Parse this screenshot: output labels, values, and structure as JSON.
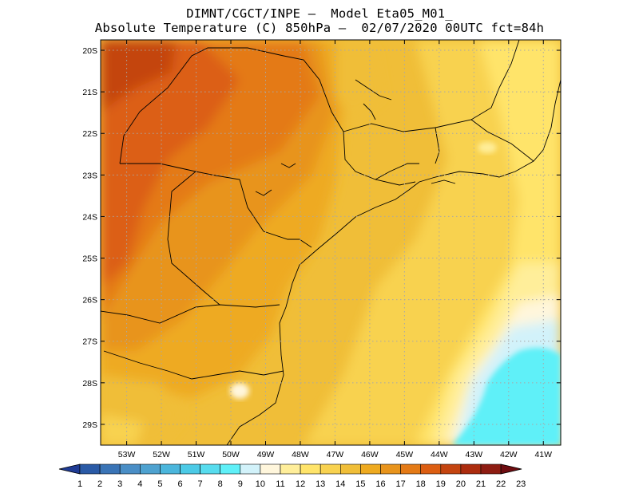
{
  "title": {
    "line1": "DIMNT/CGCT/INPE –  Model Eta05_M01_",
    "line2": "Absolute Temperature (C) 850hPa –  02/07/2020 00UTC fct=84h"
  },
  "map_data": {
    "variable": "Absolute Temperature",
    "units": "C",
    "level": "850hPa",
    "model": "Eta05_M01_",
    "run": "02/07/2020 00UTC",
    "forecast": "fct=84h",
    "lon_range": [
      -53.75,
      -40.5
    ],
    "lat_range": [
      -29.5,
      -19.75
    ],
    "x_ticks": [
      {
        "value": -53,
        "label": "53W"
      },
      {
        "value": -52,
        "label": "52W"
      },
      {
        "value": -51,
        "label": "51W"
      },
      {
        "value": -50,
        "label": "50W"
      },
      {
        "value": -49,
        "label": "49W"
      },
      {
        "value": -48,
        "label": "48W"
      },
      {
        "value": -47,
        "label": "47W"
      },
      {
        "value": -46,
        "label": "46W"
      },
      {
        "value": -45,
        "label": "45W"
      },
      {
        "value": -44,
        "label": "44W"
      },
      {
        "value": -43,
        "label": "43W"
      },
      {
        "value": -42,
        "label": "42W"
      },
      {
        "value": -41,
        "label": "41W"
      }
    ],
    "y_ticks": [
      {
        "value": -20,
        "label": "20S"
      },
      {
        "value": -21,
        "label": "21S"
      },
      {
        "value": -22,
        "label": "22S"
      },
      {
        "value": -23,
        "label": "23S"
      },
      {
        "value": -24,
        "label": "24S"
      },
      {
        "value": -25,
        "label": "25S"
      },
      {
        "value": -26,
        "label": "26S"
      },
      {
        "value": -27,
        "label": "27S"
      },
      {
        "value": -28,
        "label": "28S"
      },
      {
        "value": -29,
        "label": "29S"
      }
    ],
    "grid": true,
    "colorbar": {
      "labels": [
        "1",
        "2",
        "3",
        "4",
        "5",
        "6",
        "7",
        "8",
        "9",
        "10",
        "11",
        "12",
        "13",
        "14",
        "15",
        "16",
        "17",
        "18",
        "19",
        "20",
        "21",
        "22",
        "23"
      ],
      "colors": [
        "#1f3b94",
        "#2a5aa6",
        "#3a74b6",
        "#4a8ec6",
        "#4ea2d0",
        "#4bb6dc",
        "#4ccae6",
        "#57dcee",
        "#5ff0f8",
        "#d2f2fa",
        "#fff6dc",
        "#ffee9a",
        "#ffe46a",
        "#f8d250",
        "#f0be38",
        "#eeaa20",
        "#e8941c",
        "#e47a16",
        "#dc5e12",
        "#c44410",
        "#ac2c0e",
        "#8e1c12",
        "#6e0c10"
      ]
    }
  }
}
